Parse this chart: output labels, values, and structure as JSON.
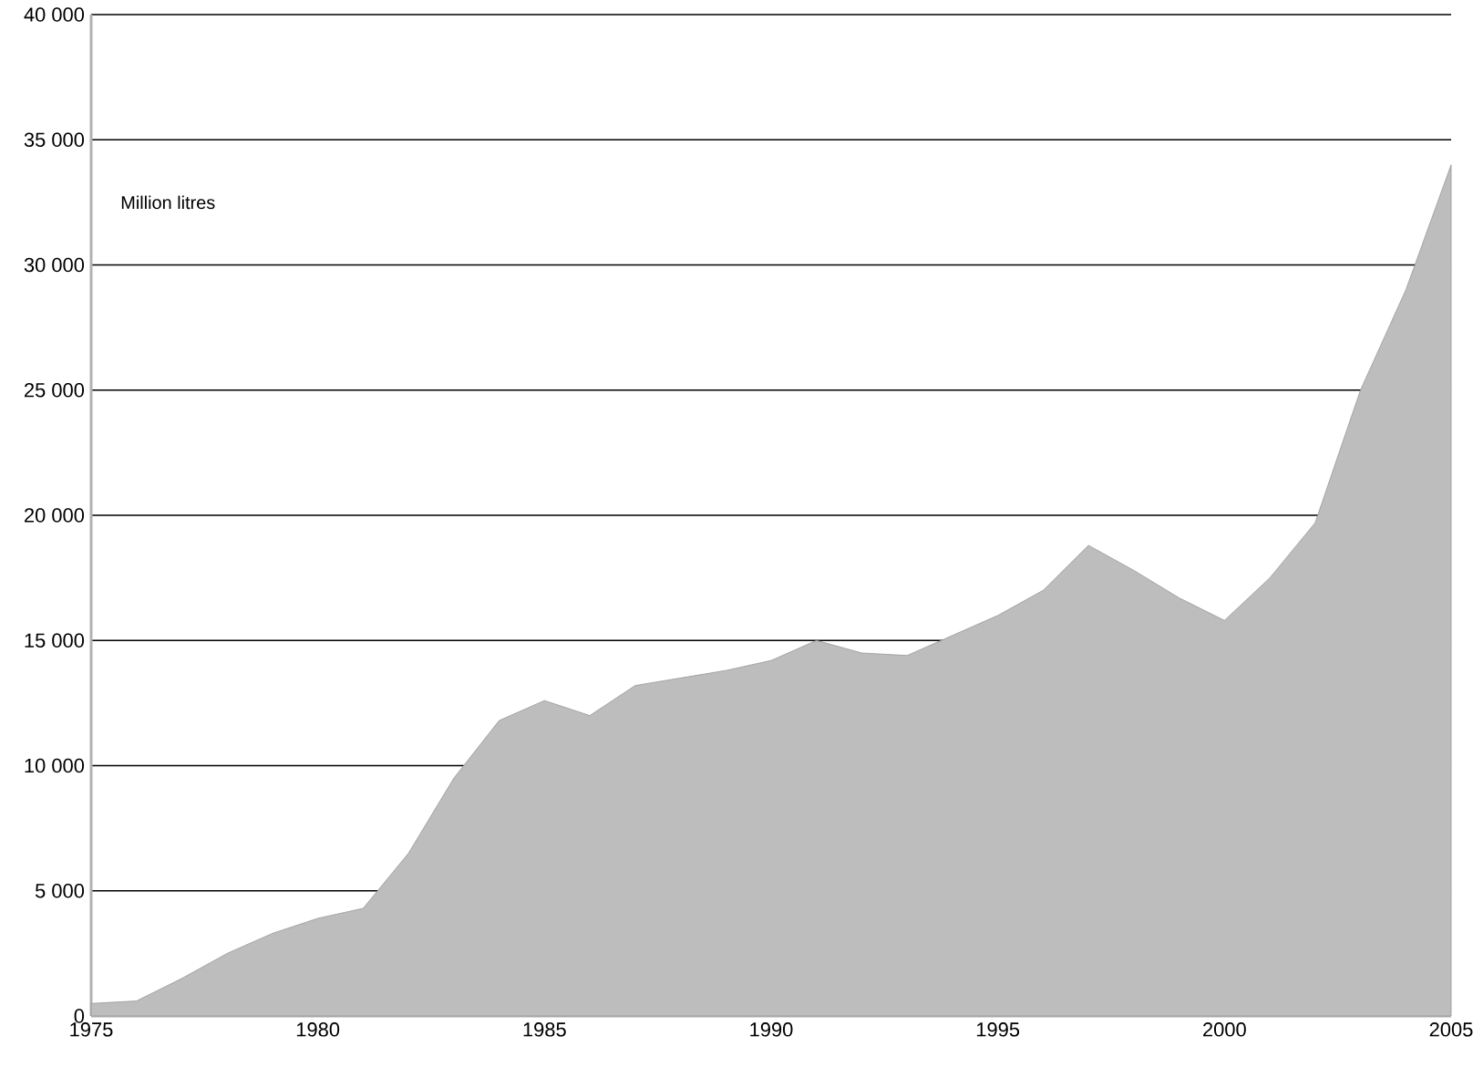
{
  "chart_data": {
    "type": "area",
    "color": "#bdbdbd",
    "x": [
      1975,
      1976,
      1977,
      1978,
      1979,
      1980,
      1981,
      1982,
      1983,
      1984,
      1985,
      1986,
      1987,
      1988,
      1989,
      1990,
      1991,
      1992,
      1993,
      1994,
      1995,
      1996,
      1997,
      1998,
      1999,
      2000,
      2001,
      2002,
      2003,
      2004,
      2005
    ],
    "values": [
      500,
      600,
      1500,
      2500,
      3300,
      3900,
      4300,
      6500,
      9500,
      11800,
      12600,
      12000,
      13200,
      13500,
      13800,
      14200,
      15000,
      14500,
      14400,
      15200,
      16000,
      17000,
      18800,
      17800,
      16700,
      15800,
      17500,
      19700,
      25000,
      29000,
      34000
    ],
    "xlim": [
      1975,
      2005
    ],
    "xticks": [
      1975,
      1980,
      1985,
      1990,
      1995,
      2000,
      2005
    ],
    "ylim": [
      0,
      40000
    ],
    "yticks": [
      {
        "value": 0,
        "label": "0"
      },
      {
        "value": 5000,
        "label": "5 000"
      },
      {
        "value": 10000,
        "label": "10 000"
      },
      {
        "value": 15000,
        "label": "15 000"
      },
      {
        "value": 20000,
        "label": "20 000"
      },
      {
        "value": 25000,
        "label": "25 000"
      },
      {
        "value": 30000,
        "label": "30 000"
      },
      {
        "value": 35000,
        "label": "35 000"
      },
      {
        "value": 40000,
        "label": "40 000"
      }
    ],
    "grid": "y",
    "annotations": [
      "Million litres"
    ]
  }
}
